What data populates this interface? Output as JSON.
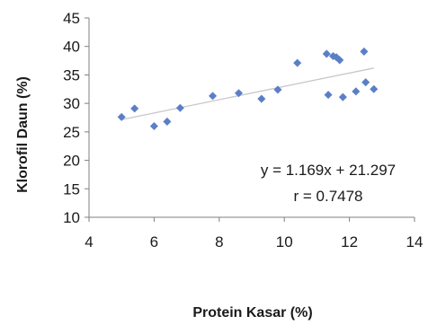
{
  "chart_data": {
    "type": "scatter",
    "xlabel": "Protein  Kasar (%)",
    "ylabel": "Klorofil Daun (%)",
    "xlim": [
      4,
      14
    ],
    "ylim": [
      10,
      45
    ],
    "x_ticks": [
      "4",
      "6",
      "8",
      "10",
      "12",
      "14"
    ],
    "y_ticks": [
      "10",
      "15",
      "20",
      "25",
      "30",
      "35",
      "40",
      "45"
    ],
    "grid": false,
    "legend": "none",
    "marker_color": "#5b7fc7",
    "trendline_color": "#c8c8c8",
    "series": [
      {
        "points": [
          {
            "x": 5.0,
            "y": 27.6
          },
          {
            "x": 5.4,
            "y": 29.1
          },
          {
            "x": 6.0,
            "y": 26.0
          },
          {
            "x": 6.4,
            "y": 26.8
          },
          {
            "x": 6.8,
            "y": 29.2
          },
          {
            "x": 7.8,
            "y": 31.3
          },
          {
            "x": 8.6,
            "y": 31.8
          },
          {
            "x": 9.3,
            "y": 30.8
          },
          {
            "x": 9.8,
            "y": 32.4
          },
          {
            "x": 10.4,
            "y": 37.1
          },
          {
            "x": 11.3,
            "y": 38.7
          },
          {
            "x": 11.35,
            "y": 31.5
          },
          {
            "x": 11.5,
            "y": 38.3
          },
          {
            "x": 11.6,
            "y": 38.1
          },
          {
            "x": 11.7,
            "y": 37.6
          },
          {
            "x": 11.8,
            "y": 31.1
          },
          {
            "x": 12.2,
            "y": 32.1
          },
          {
            "x": 12.45,
            "y": 39.1
          },
          {
            "x": 12.5,
            "y": 33.7
          },
          {
            "x": 12.75,
            "y": 32.5
          }
        ]
      }
    ],
    "trendline": {
      "slope": 1.169,
      "intercept": 21.297,
      "x_from": 5.0,
      "x_to": 12.75
    },
    "annotations": [
      "y = 1.169x + 21.297",
      "r = 0.7478"
    ]
  }
}
